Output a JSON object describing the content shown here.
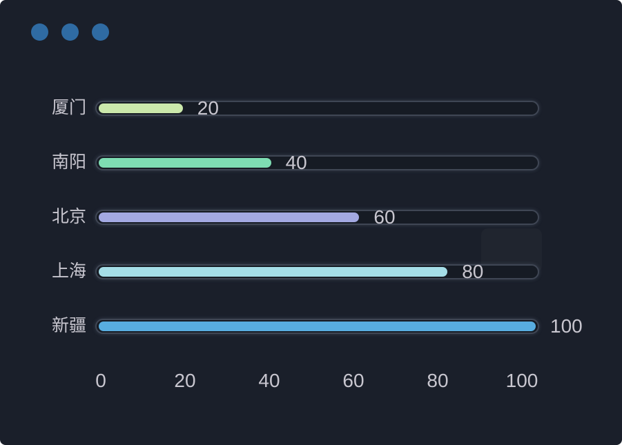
{
  "window": {
    "background": "#1a1f2a",
    "titlebar_dots": {
      "count": 3,
      "color": "#2f6ba3"
    }
  },
  "chart_data": {
    "type": "bar",
    "orientation": "horizontal",
    "title": "",
    "xlabel": "",
    "ylabel": "",
    "categories": [
      "厦门",
      "南阳",
      "北京",
      "上海",
      "新疆"
    ],
    "values": [
      20,
      40,
      60,
      80,
      100
    ],
    "value_labels": [
      "20",
      "40",
      "60",
      "80",
      "100"
    ],
    "bar_colors": [
      "#cbe8ab",
      "#7eddb3",
      "#a3a9e2",
      "#a5dee8",
      "#58ade0"
    ],
    "xlim": [
      0,
      100
    ],
    "x_ticks": [
      "0",
      "20",
      "40",
      "60",
      "80",
      "100"
    ],
    "grid": false,
    "legend": false,
    "track_color": "#161b24",
    "track_border_color": "#3f4654",
    "text_color": "#c8c6cf"
  }
}
